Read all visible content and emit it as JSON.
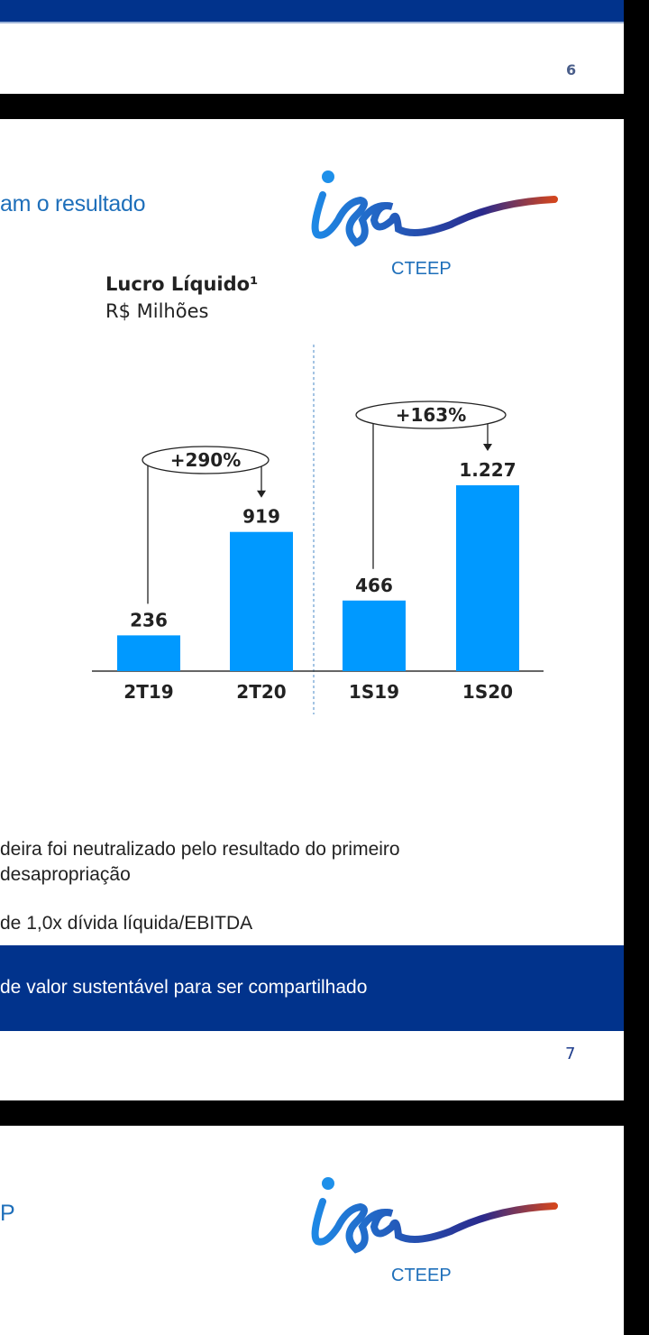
{
  "slide_prev": {
    "page_number": "6"
  },
  "slide_current": {
    "title_fragment": "am o resultado",
    "logo": {
      "text": "isa",
      "subtitle": "CTEEP"
    },
    "bullets": [
      "deira foi neutralizado pelo resultado do primeiro",
      "desapropriação",
      "de 1,0x dívida líquida/EBITDA"
    ],
    "banner": "de valor sustentável para ser compartilhado",
    "page_number": "7"
  },
  "slide_next": {
    "title_fragment": "P",
    "logo": {
      "text": "isa",
      "subtitle": "CTEEP"
    }
  },
  "colors": {
    "bar": "#0099ff",
    "brand_blue": "#01338c",
    "title_blue": "#1e6fba"
  },
  "chart_data": {
    "type": "bar",
    "title": "Lucro Líquido¹",
    "subtitle": "R$ Milhões",
    "categories": [
      "2T19",
      "2T20",
      "1S19",
      "1S20"
    ],
    "values": [
      236,
      919,
      466,
      1227
    ],
    "value_labels": [
      "236",
      "919",
      "466",
      "1.227"
    ],
    "annotations": [
      {
        "from": "2T19",
        "to": "2T20",
        "text": "+290%"
      },
      {
        "from": "1S19",
        "to": "1S20",
        "text": "+163%"
      }
    ],
    "ylim": [
      0,
      1227
    ]
  }
}
